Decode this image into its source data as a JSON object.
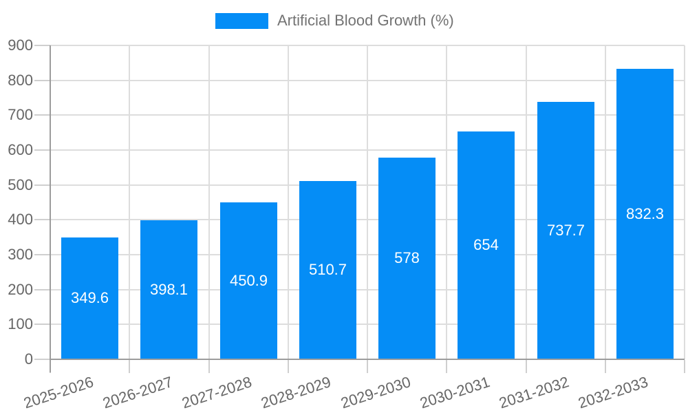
{
  "chart_data": {
    "type": "bar",
    "title": "",
    "series_name": "Artificial Blood Growth (%)",
    "categories": [
      "2025-2026",
      "2026-2027",
      "2027-2028",
      "2028-2029",
      "2029-2030",
      "2030-2031",
      "2031-2032",
      "2032-2033"
    ],
    "values": [
      349.6,
      398.1,
      450.9,
      510.7,
      578,
      654,
      737.7,
      832.3
    ],
    "value_labels": [
      "349.6",
      "398.1",
      "450.9",
      "510.7",
      "578",
      "654",
      "737.7",
      "832.3"
    ],
    "xlabel": "",
    "ylabel": "",
    "ylim": [
      0,
      900
    ],
    "ytick_step": 100,
    "grid": true,
    "legend_position": "top",
    "colors": {
      "bar": "#058df6",
      "value_label": "#ffffff",
      "tick_text": "#666666",
      "legend_text": "#737373",
      "grid": "#dddddd",
      "tick_mark": "#cfcfcf",
      "axis": "#9c9c9c",
      "background": "#ffffff"
    }
  }
}
